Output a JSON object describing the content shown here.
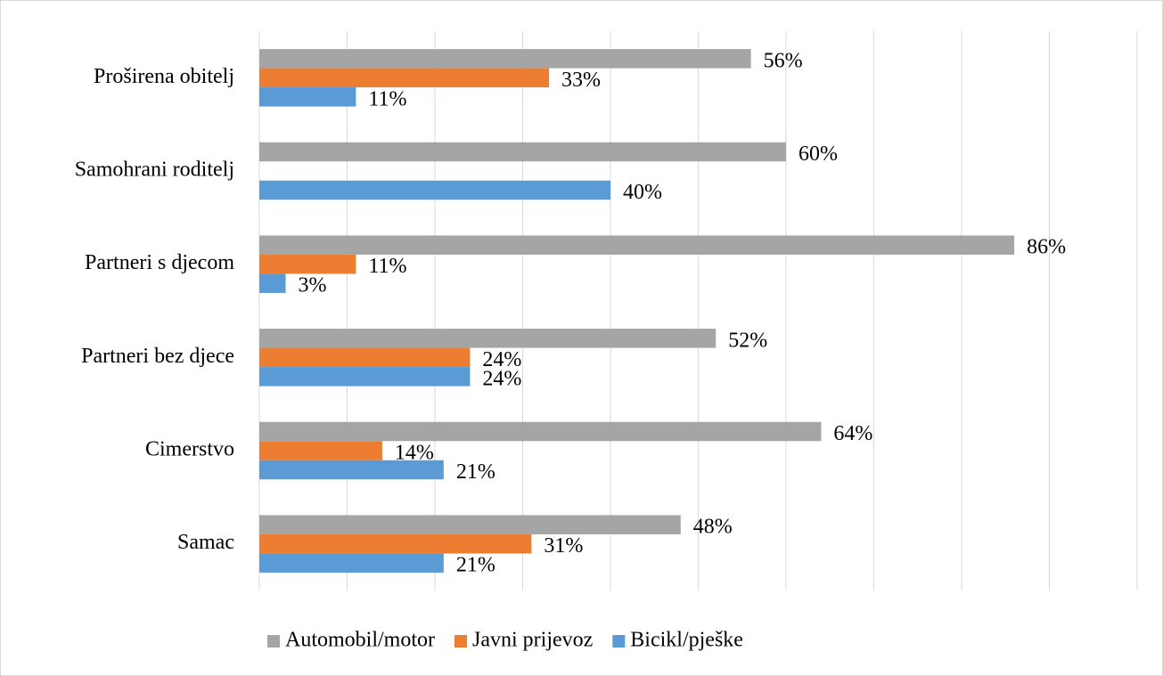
{
  "chart_data": {
    "type": "hbar",
    "categories": [
      "Proširena obitelj",
      "Samohrani roditelj",
      "Partneri s djecom",
      "Partneri bez djece",
      "Cimerstvo",
      "Samac"
    ],
    "series": [
      {
        "name": "Automobil/motor",
        "color": "#a5a5a5",
        "values": [
          56,
          60,
          86,
          52,
          64,
          48
        ],
        "value_labels": [
          "56%",
          "60%",
          "86%",
          "52%",
          "64%",
          "48%"
        ]
      },
      {
        "name": "Javni prijevoz",
        "color": "#ed7d31",
        "values": [
          33,
          null,
          11,
          24,
          14,
          31
        ],
        "value_labels": [
          "33%",
          null,
          "11%",
          "24%",
          "14%",
          "31%"
        ]
      },
      {
        "name": "Bicikl/pješke",
        "color": "#5b9bd5",
        "values": [
          11,
          40,
          3,
          24,
          21,
          21
        ],
        "value_labels": [
          "11%",
          "40%",
          "3%",
          "24%",
          "21%",
          "21%"
        ]
      }
    ],
    "xlim": [
      0,
      100
    ],
    "xticks": [
      0,
      10,
      20,
      30,
      40,
      50,
      60,
      70,
      80,
      90,
      100
    ],
    "grid": true,
    "legend": "bottom"
  }
}
